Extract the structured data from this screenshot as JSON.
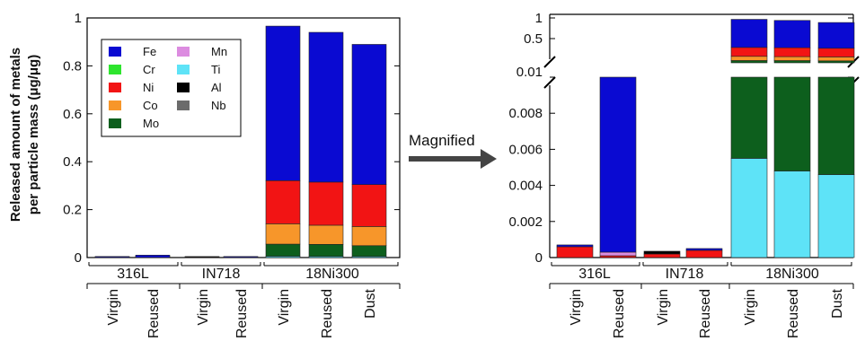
{
  "colors": {
    "Fe": "#0a0ad2",
    "Cr": "#2ee52e",
    "Ni": "#f21414",
    "Co": "#f7962a",
    "Mo": "#0d5f1d",
    "Mn": "#dc8ce0",
    "Ti": "#5ee3f7",
    "Al": "#000000",
    "Nb": "#6b6b6b"
  },
  "chart_data": [
    {
      "type": "bar",
      "stacked": true,
      "title": "",
      "ylabel": [
        "Released amount of metals",
        "per particle mass (μg/μg)"
      ],
      "ylim": [
        0,
        1
      ],
      "yticks": [
        "0",
        "0.2",
        "0.4",
        "0.6",
        "0.8",
        "1"
      ],
      "legend": [
        "Fe",
        "Cr",
        "Ni",
        "Co",
        "Mo",
        "Mn",
        "Ti",
        "Al",
        "Nb"
      ],
      "legend_position": "top-left",
      "groups": [
        "316L",
        "IN718",
        "18Ni300"
      ],
      "categories": [
        "Virgin",
        "Reused",
        "Virgin",
        "Reused",
        "Virgin",
        "Reused",
        "Dust"
      ],
      "series": [
        {
          "name": "Ti",
          "values": [
            0,
            0,
            0,
            0,
            0.0055,
            0.0048,
            0.0046
          ]
        },
        {
          "name": "Mo",
          "values": [
            0,
            0,
            0,
            0,
            0.0505,
            0.0502,
            0.045
          ]
        },
        {
          "name": "Co",
          "values": [
            0,
            0,
            0,
            0,
            0.085,
            0.08,
            0.08
          ]
        },
        {
          "name": "Ni",
          "values": [
            0.0006,
            0.0001,
            0.0002,
            0.0004,
            0.18,
            0.18,
            0.175
          ]
        },
        {
          "name": "Mn",
          "values": [
            0,
            0.0002,
            0,
            0,
            0,
            0,
            0
          ]
        },
        {
          "name": "Fe",
          "values": [
            0.0001,
            0.0097,
            0,
            0.0001,
            0.645,
            0.625,
            0.585
          ]
        },
        {
          "name": "Al",
          "values": [
            0,
            0,
            0.00015,
            0,
            0,
            0,
            0
          ]
        }
      ]
    },
    {
      "type": "bar",
      "stacked": true,
      "title": "",
      "yaxis_break": [
        0.01,
        0.5
      ],
      "yticks_lower": [
        "0",
        "0.002",
        "0.004",
        "0.006",
        "0.008",
        "0.01"
      ],
      "yticks_upper": [
        "0.5",
        "1"
      ],
      "groups": [
        "316L",
        "IN718",
        "18Ni300"
      ],
      "categories": [
        "Virgin",
        "Reused",
        "Virgin",
        "Reused",
        "Virgin",
        "Reused",
        "Dust"
      ],
      "series": [
        {
          "name": "Ti",
          "values": [
            0,
            0,
            0,
            0,
            0.0055,
            0.0048,
            0.0046
          ]
        },
        {
          "name": "Mo",
          "values": [
            0,
            0,
            0,
            0,
            0.0505,
            0.0502,
            0.045
          ]
        },
        {
          "name": "Co",
          "values": [
            0,
            0,
            0,
            0,
            0.085,
            0.08,
            0.08
          ]
        },
        {
          "name": "Ni",
          "values": [
            0.0006,
            0.0001,
            0.0002,
            0.0004,
            0.18,
            0.18,
            0.175
          ]
        },
        {
          "name": "Mn",
          "values": [
            0,
            0.0002,
            0,
            0,
            0,
            0,
            0
          ]
        },
        {
          "name": "Fe",
          "values": [
            0.0001,
            0.0097,
            0,
            0.0001,
            0.645,
            0.625,
            0.585
          ]
        },
        {
          "name": "Al",
          "values": [
            0,
            0,
            0.00015,
            0,
            0,
            0,
            0
          ]
        }
      ]
    }
  ],
  "arrow_label": "Magnified"
}
